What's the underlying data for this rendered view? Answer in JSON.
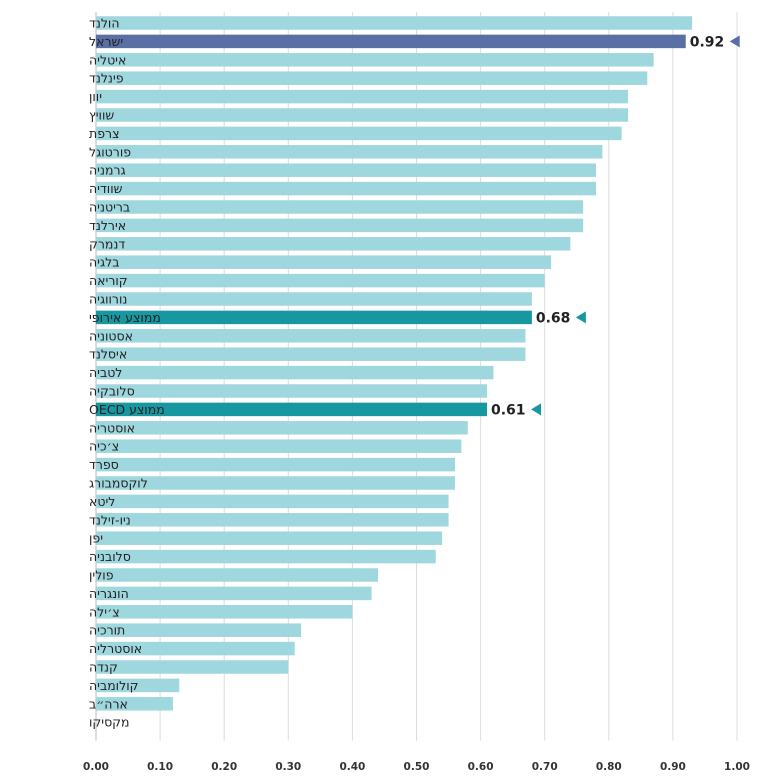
{
  "chart_data": {
    "type": "bar",
    "orientation": "horizontal",
    "title": "",
    "xlabel": "",
    "ylabel": "",
    "xlim": [
      0,
      1.0
    ],
    "grid": true,
    "x_ticks": [
      "0.00",
      "0.10",
      "0.20",
      "0.30",
      "0.40",
      "0.50",
      "0.60",
      "0.70",
      "0.80",
      "0.90",
      "1.00"
    ],
    "colors": {
      "default": "#9fd7de",
      "israel": "#5a70a5",
      "average": "#17979f"
    },
    "categories": [
      "הולנד",
      "ישראל",
      "איטליה",
      "פינלנד",
      "יוון",
      "שוויץ",
      "צרפת",
      "פורטוגל",
      "גרמניה",
      "שוודיה",
      "בריטניה",
      "אירלנד",
      "דנמרק",
      "בלגיה",
      "קוריאה",
      "נורווגיה",
      "ממוצע אירופי",
      "אסטוניה",
      "איסלנד",
      "לטביה",
      "סלובקיה",
      "ממוצע OECD",
      "אוסטריה",
      "צ׳כיה",
      "ספרד",
      "לוקסמבורג",
      "ליטא",
      "ניו-זילנד",
      "יפן",
      "סלובניה",
      "פולין",
      "הונגריה",
      "צ׳ילה",
      "תורכיה",
      "אוסטרליה",
      "קנדה",
      "קולומביה",
      "ארה״ב",
      "מקסיקו"
    ],
    "values": [
      0.93,
      0.92,
      0.87,
      0.86,
      0.83,
      0.83,
      0.82,
      0.79,
      0.78,
      0.78,
      0.76,
      0.76,
      0.74,
      0.71,
      0.7,
      0.68,
      0.68,
      0.67,
      0.67,
      0.62,
      0.61,
      0.61,
      0.58,
      0.57,
      0.56,
      0.56,
      0.55,
      0.55,
      0.54,
      0.53,
      0.44,
      0.43,
      0.4,
      0.32,
      0.31,
      0.3,
      0.13,
      0.12,
      0
    ],
    "highlight": {
      "ישראל": "israel",
      "ממוצע אירופי": "average",
      "ממוצע OECD": "average"
    },
    "data_labels": [
      {
        "category": "ישראל",
        "text": "0.92"
      },
      {
        "category": "ממוצע אירופי",
        "text": "0.68"
      },
      {
        "category": "ממוצע OECD",
        "text": "0.61"
      }
    ]
  }
}
